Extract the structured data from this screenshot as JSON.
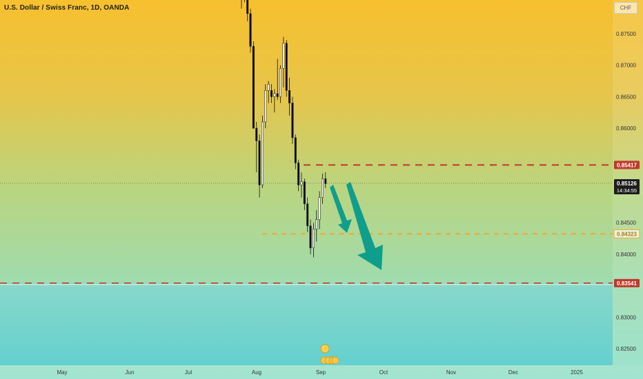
{
  "header": {
    "symbol_title": "U.S. Dollar / Swiss Franc, 1D, OANDA",
    "currency_button": "CHF"
  },
  "chart_data": {
    "type": "candlestick",
    "title": "U.S. Dollar / Swiss Franc, 1D, OANDA",
    "y_ticks": [
      0.825,
      0.83,
      0.84,
      0.845,
      0.86,
      0.865,
      0.87,
      0.875
    ],
    "y_tick_labels": [
      "0.82500",
      "0.83000",
      "0.84000",
      "0.84500",
      "0.86000",
      "0.86500",
      "0.87000",
      "0.87500"
    ],
    "ylim": [
      0.822,
      0.88
    ],
    "x_labels": [
      "May",
      "Jun",
      "Jul",
      "Aug",
      "Sep",
      "Oct",
      "Nov",
      "Dec",
      "2025"
    ],
    "levels": [
      {
        "name": "resistance",
        "value": 0.85417,
        "label": "0.85417",
        "color": "#c0392b",
        "style": "dashed"
      },
      {
        "name": "target-1",
        "value": 0.84323,
        "label": "0.84323",
        "color": "#f5a623",
        "style": "dashed"
      },
      {
        "name": "target-2",
        "value": 0.83541,
        "label": "0.83541",
        "color": "#c0392b",
        "style": "dashed"
      }
    ],
    "current_price": {
      "value": 0.85126,
      "label": "0.85126",
      "countdown": "14:34:55",
      "color": "#1e1e1e"
    },
    "candles": [
      {
        "o": 0.8815,
        "h": 0.883,
        "l": 0.879,
        "c": 0.8805
      },
      {
        "o": 0.881,
        "h": 0.883,
        "l": 0.88,
        "c": 0.882
      },
      {
        "o": 0.882,
        "h": 0.883,
        "l": 0.877,
        "c": 0.8782
      },
      {
        "o": 0.8782,
        "h": 0.879,
        "l": 0.872,
        "c": 0.873
      },
      {
        "o": 0.873,
        "h": 0.8738,
        "l": 0.86,
        "c": 0.86
      },
      {
        "o": 0.86,
        "h": 0.861,
        "l": 0.853,
        "c": 0.858
      },
      {
        "o": 0.858,
        "h": 0.859,
        "l": 0.849,
        "c": 0.851
      },
      {
        "o": 0.851,
        "h": 0.862,
        "l": 0.8505,
        "c": 0.861
      },
      {
        "o": 0.861,
        "h": 0.867,
        "l": 0.86,
        "c": 0.866
      },
      {
        "o": 0.866,
        "h": 0.8675,
        "l": 0.864,
        "c": 0.867
      },
      {
        "o": 0.866,
        "h": 0.867,
        "l": 0.864,
        "c": 0.865
      },
      {
        "o": 0.865,
        "h": 0.8662,
        "l": 0.8625,
        "c": 0.8655
      },
      {
        "o": 0.8655,
        "h": 0.871,
        "l": 0.8645,
        "c": 0.865
      },
      {
        "o": 0.865,
        "h": 0.87,
        "l": 0.864,
        "c": 0.8695
      },
      {
        "o": 0.8695,
        "h": 0.8745,
        "l": 0.8665,
        "c": 0.8735
      },
      {
        "o": 0.8735,
        "h": 0.874,
        "l": 0.865,
        "c": 0.866
      },
      {
        "o": 0.866,
        "h": 0.868,
        "l": 0.862,
        "c": 0.864
      },
      {
        "o": 0.864,
        "h": 0.865,
        "l": 0.8575,
        "c": 0.8585
      },
      {
        "o": 0.8585,
        "h": 0.859,
        "l": 0.8535,
        "c": 0.8545
      },
      {
        "o": 0.8545,
        "h": 0.855,
        "l": 0.85,
        "c": 0.851
      },
      {
        "o": 0.851,
        "h": 0.853,
        "l": 0.849,
        "c": 0.8515
      },
      {
        "o": 0.8515,
        "h": 0.852,
        "l": 0.847,
        "c": 0.848
      },
      {
        "o": 0.848,
        "h": 0.849,
        "l": 0.8435,
        "c": 0.8445
      },
      {
        "o": 0.8445,
        "h": 0.8455,
        "l": 0.84,
        "c": 0.841
      },
      {
        "o": 0.841,
        "h": 0.845,
        "l": 0.8395,
        "c": 0.844
      },
      {
        "o": 0.844,
        "h": 0.847,
        "l": 0.842,
        "c": 0.8455
      },
      {
        "o": 0.8455,
        "h": 0.85,
        "l": 0.844,
        "c": 0.849
      },
      {
        "o": 0.849,
        "h": 0.8528,
        "l": 0.848,
        "c": 0.852
      },
      {
        "o": 0.852,
        "h": 0.853,
        "l": 0.8505,
        "c": 0.8512
      }
    ],
    "grid": false,
    "colors": {
      "up": "#ffffff",
      "down": "#000000",
      "arrow": "#109e8c"
    }
  }
}
